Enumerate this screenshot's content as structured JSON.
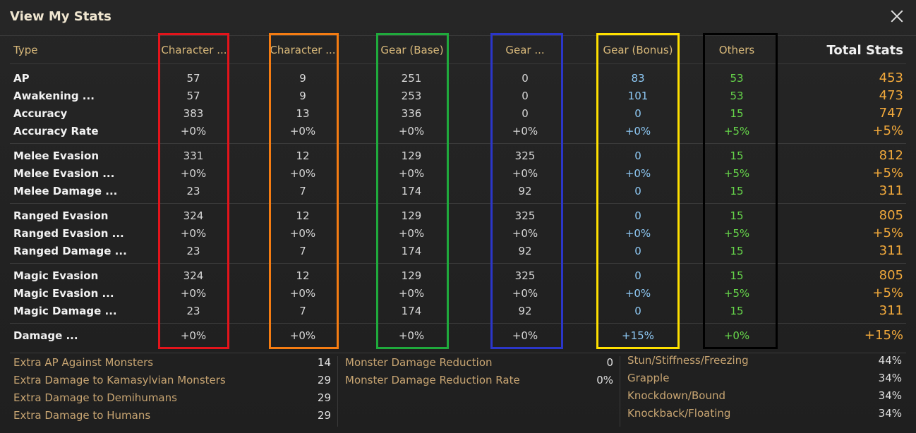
{
  "window": {
    "title": "View My Stats"
  },
  "columns": {
    "type": "Type",
    "char1": "Character ...",
    "char2": "Character ...",
    "gear_base": "Gear (Base)",
    "gear2": "Gear ...",
    "gear_bonus": "Gear (Bonus)",
    "others": "Others",
    "total": "Total Stats"
  },
  "rows": [
    {
      "label": "AP",
      "v": [
        "57",
        "9",
        "251",
        "0",
        "83",
        "53",
        "453"
      ]
    },
    {
      "label": "Awakening ...",
      "v": [
        "57",
        "9",
        "253",
        "0",
        "101",
        "53",
        "473"
      ]
    },
    {
      "label": "Accuracy",
      "v": [
        "383",
        "13",
        "336",
        "0",
        "0",
        "15",
        "747"
      ]
    },
    {
      "label": "Accuracy Rate",
      "v": [
        "+0%",
        "+0%",
        "+0%",
        "+0%",
        "+0%",
        "+5%",
        "+5%"
      ]
    },
    {
      "label": "Melee Evasion",
      "v": [
        "331",
        "12",
        "129",
        "325",
        "0",
        "15",
        "812"
      ]
    },
    {
      "label": "Melee Evasion ...",
      "v": [
        "+0%",
        "+0%",
        "+0%",
        "+0%",
        "+0%",
        "+5%",
        "+5%"
      ]
    },
    {
      "label": "Melee Damage ...",
      "v": [
        "23",
        "7",
        "174",
        "92",
        "0",
        "15",
        "311"
      ]
    },
    {
      "label": "Ranged Evasion",
      "v": [
        "324",
        "12",
        "129",
        "325",
        "0",
        "15",
        "805"
      ]
    },
    {
      "label": "Ranged Evasion ...",
      "v": [
        "+0%",
        "+0%",
        "+0%",
        "+0%",
        "+0%",
        "+5%",
        "+5%"
      ]
    },
    {
      "label": "Ranged Damage ...",
      "v": [
        "23",
        "7",
        "174",
        "92",
        "0",
        "15",
        "311"
      ]
    },
    {
      "label": "Magic Evasion",
      "v": [
        "324",
        "12",
        "129",
        "325",
        "0",
        "15",
        "805"
      ]
    },
    {
      "label": "Magic Evasion ...",
      "v": [
        "+0%",
        "+0%",
        "+0%",
        "+0%",
        "+0%",
        "+5%",
        "+5%"
      ]
    },
    {
      "label": "Magic Damage ...",
      "v": [
        "23",
        "7",
        "174",
        "92",
        "0",
        "15",
        "311"
      ]
    },
    {
      "label": "Damage ...",
      "v": [
        "+0%",
        "+0%",
        "+0%",
        "+0%",
        "+15%",
        "+0%",
        "+15%"
      ]
    }
  ],
  "bottom": {
    "left": [
      {
        "label": "Extra AP Against Monsters",
        "value": "14"
      },
      {
        "label": "Extra Damage to Kamasylvian Monsters",
        "value": "29"
      },
      {
        "label": "Extra Damage to Demihumans",
        "value": "29"
      },
      {
        "label": "Extra Damage to Humans",
        "value": "29"
      }
    ],
    "middle": [
      {
        "label": "Monster Damage Reduction",
        "value": "0"
      },
      {
        "label": "Monster Damage Reduction Rate",
        "value": "0%"
      }
    ],
    "right": [
      {
        "label": "Stun/Stiffness/Freezing",
        "value": "44%"
      },
      {
        "label": "Grapple",
        "value": "34%"
      },
      {
        "label": "Knockdown/Bound",
        "value": "34%"
      },
      {
        "label": "Knockback/Floating",
        "value": "34%"
      }
    ]
  },
  "highlight_colors": [
    "#e3141b",
    "#f57c12",
    "#1faa3c",
    "#2b36c9",
    "#ffe000",
    "#000000"
  ]
}
